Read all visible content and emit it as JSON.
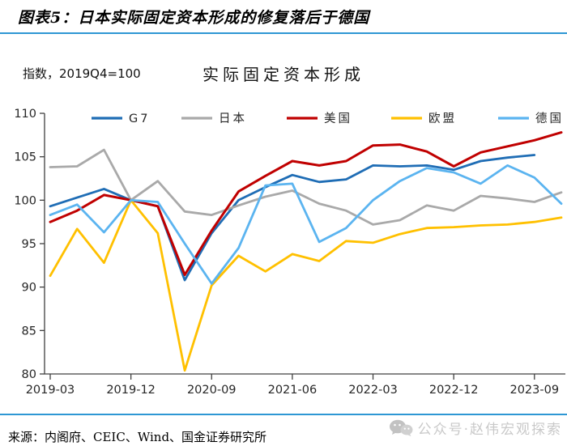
{
  "header": {
    "title": "图表5：日本实际固定资本形成的修复落后于德国"
  },
  "subtitle": {
    "index_note": "指数，2019Q4=100",
    "chart_title": "实际固定资本形成"
  },
  "footer": {
    "source": "来源：内阁府、CEIC、Wind、国金证券研究所",
    "watermark": "公众号·赵伟宏观探索"
  },
  "colors": {
    "divider_blue": "#2e97d4",
    "axis": "#404040",
    "watermark_gray": "#c9c9c9"
  },
  "chart_data": {
    "type": "line",
    "title": "实际固定资本形成",
    "unit_note": "指数，2019Q4=100",
    "grid": false,
    "legend_position": "top",
    "ylim": [
      80,
      110
    ],
    "y_ticks": [
      110,
      105,
      100,
      95,
      90,
      85,
      80
    ],
    "x": [
      "2019-03",
      "2019-06",
      "2019-09",
      "2019-12",
      "2020-03",
      "2020-06",
      "2020-09",
      "2020-12",
      "2021-03",
      "2021-06",
      "2021-09",
      "2021-12",
      "2022-03",
      "2022-06",
      "2022-09",
      "2022-12",
      "2023-03",
      "2023-06",
      "2023-09",
      "2023-12"
    ],
    "x_tick_labels": [
      "2019-03",
      "2019-12",
      "2020-09",
      "2021-06",
      "2022-03",
      "2022-12",
      "2023-09"
    ],
    "x_tick_every": 3,
    "series": [
      {
        "name": "G7",
        "color": "#1f6db5",
        "values": [
          99.3,
          100.3,
          101.3,
          100,
          99.3,
          90.8,
          96.2,
          100.0,
          101.5,
          102.9,
          102.1,
          102.4,
          104.0,
          103.9,
          104.0,
          103.5,
          104.5,
          104.9,
          105.2,
          null
        ]
      },
      {
        "name": "日本",
        "color": "#a9a9a9",
        "values": [
          103.8,
          103.9,
          105.8,
          100,
          102.2,
          98.7,
          98.3,
          99.4,
          100.4,
          101.1,
          99.6,
          98.8,
          97.2,
          97.7,
          99.4,
          98.8,
          100.5,
          100.2,
          99.8,
          100.9
        ]
      },
      {
        "name": "美国",
        "color": "#c00000",
        "values": [
          97.5,
          98.8,
          100.6,
          100,
          99.3,
          91.4,
          96.5,
          101.0,
          102.8,
          104.5,
          104.0,
          104.5,
          106.3,
          106.4,
          105.6,
          103.9,
          105.5,
          106.2,
          106.9,
          107.8
        ]
      },
      {
        "name": "欧盟",
        "color": "#ffc000",
        "values": [
          91.3,
          96.7,
          92.8,
          100,
          96.2,
          80.4,
          90.2,
          93.6,
          91.8,
          93.8,
          93.0,
          95.3,
          95.1,
          96.1,
          96.8,
          96.9,
          97.1,
          97.2,
          97.5,
          98.0
        ]
      },
      {
        "name": "德国",
        "color": "#5bb4f0",
        "values": [
          98.3,
          99.5,
          96.3,
          100,
          99.8,
          95.0,
          90.4,
          94.5,
          101.7,
          101.9,
          95.2,
          96.8,
          100.0,
          102.2,
          103.7,
          103.2,
          101.9,
          104.0,
          102.6,
          99.6
        ]
      }
    ]
  }
}
